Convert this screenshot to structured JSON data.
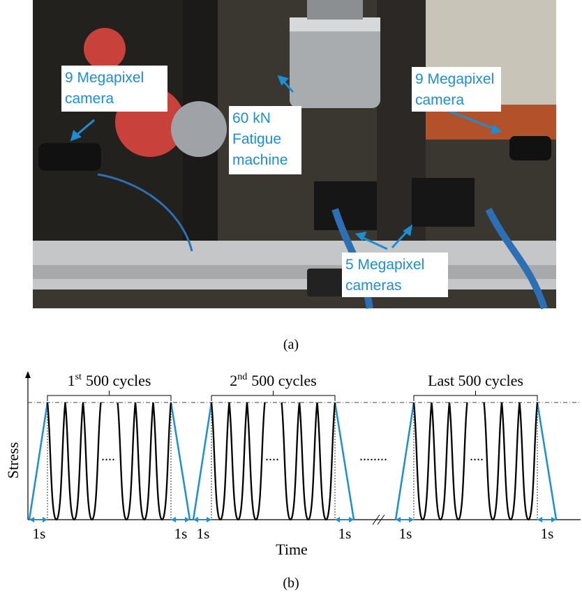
{
  "panel_a": {
    "labels": [
      {
        "lines": [
          "9 Megapixel",
          "camera"
        ]
      },
      {
        "lines": [
          "60 kN",
          "Fatigue",
          "machine"
        ]
      },
      {
        "lines": [
          "9 Megapixel",
          "camera"
        ]
      },
      {
        "lines": [
          "5 Megapixel",
          "cameras"
        ]
      }
    ],
    "caption": "(a)"
  },
  "panel_b": {
    "y_label": "Stress",
    "x_label": "Time",
    "groups": [
      {
        "ordinal": "1",
        "suffix": "st",
        "rest": "500 cycles"
      },
      {
        "ordinal": "2",
        "suffix": "nd",
        "rest": "500 cycles"
      },
      {
        "text": "Last 500 cycles"
      }
    ],
    "ellipses": [
      "....",
      "....",
      "........",
      "...."
    ],
    "durations": [
      "1s",
      "1s",
      "1s",
      "1s",
      "1s",
      "1s"
    ],
    "caption": "(b)"
  }
}
